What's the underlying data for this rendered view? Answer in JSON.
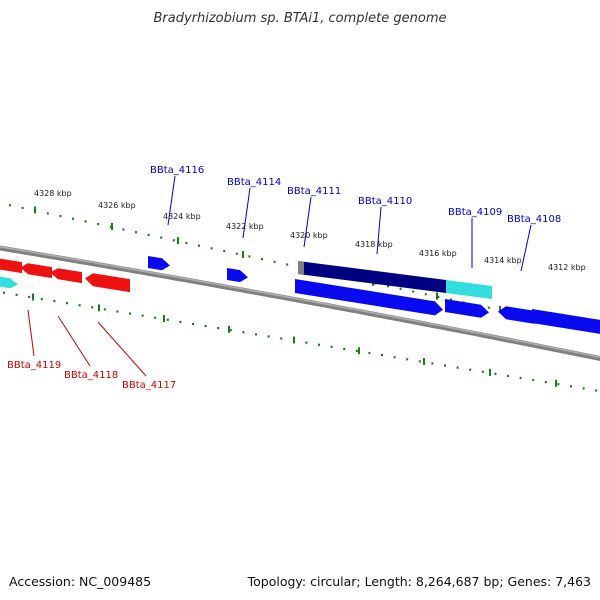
{
  "title": "Bradyrhizobium sp. BTAi1, complete genome",
  "footer": {
    "accession": "Accession: NC_009485",
    "summary": "Topology: circular; Length: 8,264,687 bp; Genes: 7,463"
  },
  "colors": {
    "background": "#ffffff",
    "backbone": "#808080",
    "tick": "#1e7a1e",
    "forward_gene": "#0a0af0",
    "reverse_gene": "#ee1111",
    "selected_gene": "#000080",
    "highlight_gene": "#33dddd",
    "forward_label": "#0000cc",
    "reverse_label": "#cc0000"
  },
  "scale_labels": [
    "4328 kbp",
    "4326 kbp",
    "4324 kbp",
    "4322 kbp",
    "4320 kbp",
    "4318 kbp",
    "4316 kbp",
    "4314 kbp",
    "4312 kbp"
  ],
  "forward_genes": [
    "BBta_4116",
    "BBta_4114",
    "BBta_4111",
    "BBta_4110",
    "BBta_4109",
    "BBta_4108"
  ],
  "reverse_genes": [
    "BBta_4119",
    "BBta_4118",
    "BBta_4117"
  ]
}
